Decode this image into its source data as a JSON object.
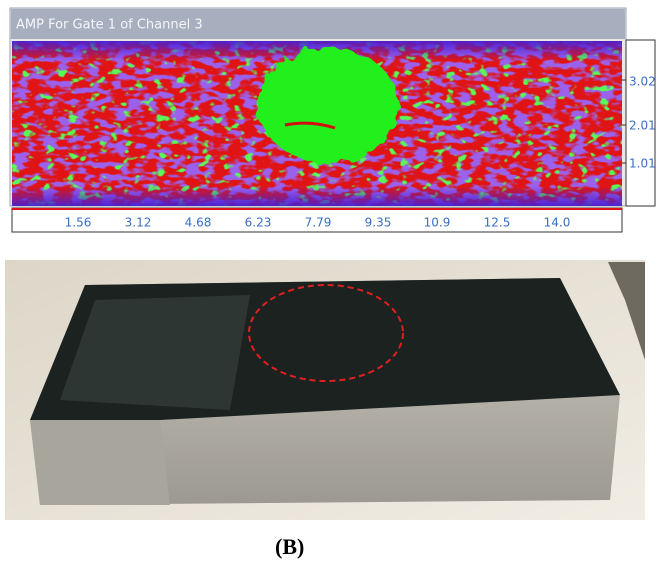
{
  "scan_window": {
    "title": "AMP For Gate 1 of Channel 3",
    "x_tick_labels": [
      "1.56",
      "3.12",
      "4.68",
      "6.23",
      "7.79",
      "9.35",
      "10.9",
      "12.5",
      "14.0"
    ],
    "y_tick_labels": [
      "3.02",
      "2.01",
      "1.01"
    ]
  },
  "caption": "(B)"
}
